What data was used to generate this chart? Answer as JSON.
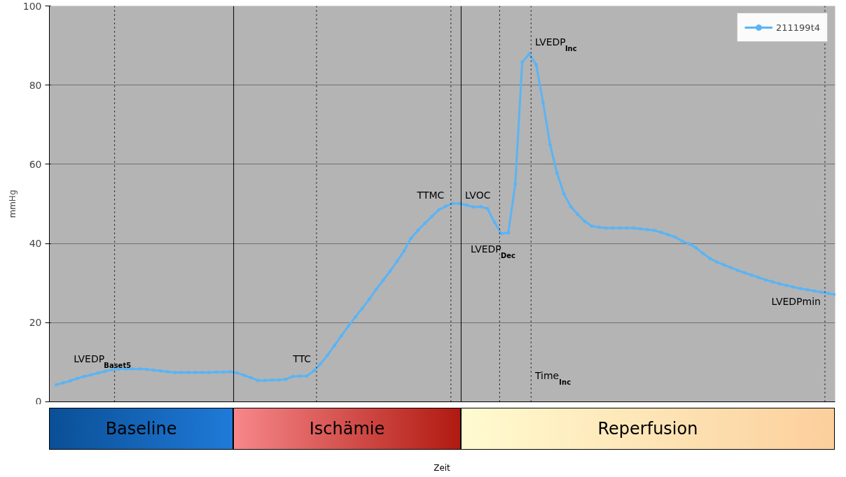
{
  "chart_data": {
    "type": "line",
    "ylabel": "mmHg",
    "categories": [
      null,
      null,
      null,
      null,
      null,
      null,
      null,
      null,
      null,
      null,
      null,
      null,
      null,
      null,
      null,
      null,
      null,
      null,
      null,
      null,
      null,
      null,
      null,
      null,
      null,
      null,
      null,
      null,
      null,
      null,
      null,
      null,
      null,
      null,
      null,
      null,
      null,
      null,
      null,
      null,
      null,
      null,
      null,
      null,
      null,
      null,
      null,
      null,
      null,
      null,
      null,
      null,
      null,
      null,
      null,
      null,
      null,
      null,
      null,
      null,
      null,
      null,
      null,
      null,
      null,
      null,
      null,
      null,
      null,
      null,
      null,
      null,
      null,
      null,
      null,
      null,
      null,
      null,
      null,
      null,
      null,
      null,
      null,
      null,
      null,
      null,
      null,
      null,
      null,
      null,
      null,
      null,
      null,
      null,
      null,
      null,
      null,
      null,
      null,
      null,
      null,
      null,
      null,
      null,
      null,
      null,
      null,
      null,
      null,
      null,
      null,
      null,
      null
    ],
    "series": [
      {
        "name": "211199t4",
        "color": "#5ab4f5",
        "values": [
          4.3,
          4.8,
          5.3,
          5.9,
          6.4,
          6.8,
          7.3,
          7.7,
          8.1,
          8.3,
          8.3,
          8.3,
          8.3,
          8.2,
          8.0,
          7.8,
          7.6,
          7.4,
          7.4,
          7.4,
          7.4,
          7.4,
          7.4,
          7.5,
          7.5,
          7.6,
          7.3,
          6.7,
          6.1,
          5.4,
          5.4,
          5.5,
          5.5,
          5.7,
          6.4,
          6.5,
          6.5,
          7.8,
          9.6,
          11.8,
          14.2,
          16.7,
          19.1,
          21.4,
          23.6,
          25.9,
          28.4,
          30.7,
          33.0,
          35.5,
          38.1,
          41.3,
          43.3,
          45.1,
          46.8,
          48.5,
          49.4,
          50.1,
          50.1,
          49.7,
          49.2,
          49.3,
          48.8,
          45.4,
          42.5,
          42.7,
          55.0,
          85.8,
          87.9,
          85.2,
          75.6,
          65.0,
          57.8,
          52.5,
          49.3,
          47.3,
          45.6,
          44.4,
          44.1,
          43.9,
          43.9,
          43.9,
          43.9,
          43.9,
          43.7,
          43.5,
          43.3,
          42.8,
          42.2,
          41.6,
          40.6,
          39.9,
          38.9,
          37.5,
          36.2,
          35.3,
          34.6,
          33.9,
          33.2,
          32.6,
          32.0,
          31.4,
          30.8,
          30.3,
          29.8,
          29.4,
          29.0,
          28.6,
          28.3,
          28.0,
          27.7,
          27.4,
          27.1
        ]
      }
    ],
    "ylim": [
      0,
      100
    ],
    "yticks": [
      0,
      20,
      40,
      60,
      80,
      100
    ],
    "grid": "y",
    "legend": "top right",
    "marker": "circle",
    "line_style": "solid",
    "annotations": [
      "Baseline",
      "Ischämie",
      "Reperfusion",
      "LVEDP$_{Baset5}$",
      "TTC",
      "TTMC",
      "LVOC",
      "LVEDP$_{Dec}$",
      "LVEDP$_{Inc}$",
      "Time$_{Inc}$",
      "LVEDPmin",
      "Zeit"
    ]
  }
}
